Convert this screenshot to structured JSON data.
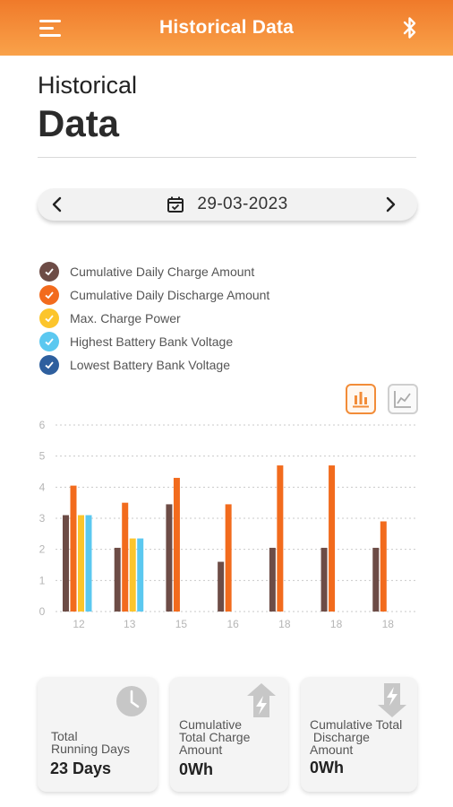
{
  "header": {
    "title": "Historical Data"
  },
  "page": {
    "title_line1": "Historical",
    "title_line2": "Data"
  },
  "date_picker": {
    "date": "29-03-2023"
  },
  "legend": [
    {
      "label": "Cumulative Daily Charge Amount",
      "color": "#6d4c46"
    },
    {
      "label": "Cumulative Daily Discharge Amount",
      "color": "#f26b1d"
    },
    {
      "label": "Max. Charge Power",
      "color": "#fcc52c"
    },
    {
      "label": "Highest Battery Bank Voltage",
      "color": "#5bc8f0"
    },
    {
      "label": "Lowest Battery Bank Voltage",
      "color": "#2e5f9e"
    }
  ],
  "chart_data": {
    "type": "bar",
    "categories": [
      "12",
      "13",
      "15",
      "16",
      "18",
      "18",
      "18"
    ],
    "yticks": [
      "0",
      "1",
      "2",
      "3",
      "4",
      "5",
      "6"
    ],
    "ylim": [
      0,
      6
    ],
    "grid": true,
    "series": [
      {
        "name": "Cumulative Daily Charge Amount",
        "color": "#6d4c46",
        "values": [
          3.1,
          2.05,
          3.45,
          1.6,
          2.05,
          2.05,
          2.05
        ]
      },
      {
        "name": "Cumulative Daily Discharge Amount",
        "color": "#f26b1d",
        "values": [
          4.05,
          3.5,
          4.3,
          3.45,
          4.7,
          4.7,
          2.9
        ]
      },
      {
        "name": "Max. Charge Power",
        "color": "#fcc52c",
        "values": [
          3.1,
          2.35,
          null,
          null,
          null,
          null,
          null
        ]
      },
      {
        "name": "Highest Battery Bank Voltage",
        "color": "#5bc8f0",
        "values": [
          3.1,
          2.35,
          null,
          null,
          null,
          null,
          null
        ]
      }
    ]
  },
  "cards": [
    {
      "label_lines": [
        "Total",
        "Running Days"
      ],
      "value": "23 Days"
    },
    {
      "label_lines": [
        "Cumulative",
        "Total Charge",
        "Amount"
      ],
      "value": "0Wh"
    },
    {
      "label_lines": [
        "Cumulative Total",
        " Discharge",
        "Amount"
      ],
      "value": "0Wh"
    }
  ],
  "icons": {
    "menu": "hamburger-icon",
    "bluetooth": "bluetooth-icon",
    "calendar": "calendar-check-icon",
    "prev": "chevron-left-icon",
    "next": "chevron-right-icon",
    "bar_chart": "bar-chart-icon",
    "line_chart": "line-chart-icon",
    "clock": "clock-icon",
    "charge": "battery-charge-up-icon",
    "discharge": "battery-discharge-down-icon"
  }
}
